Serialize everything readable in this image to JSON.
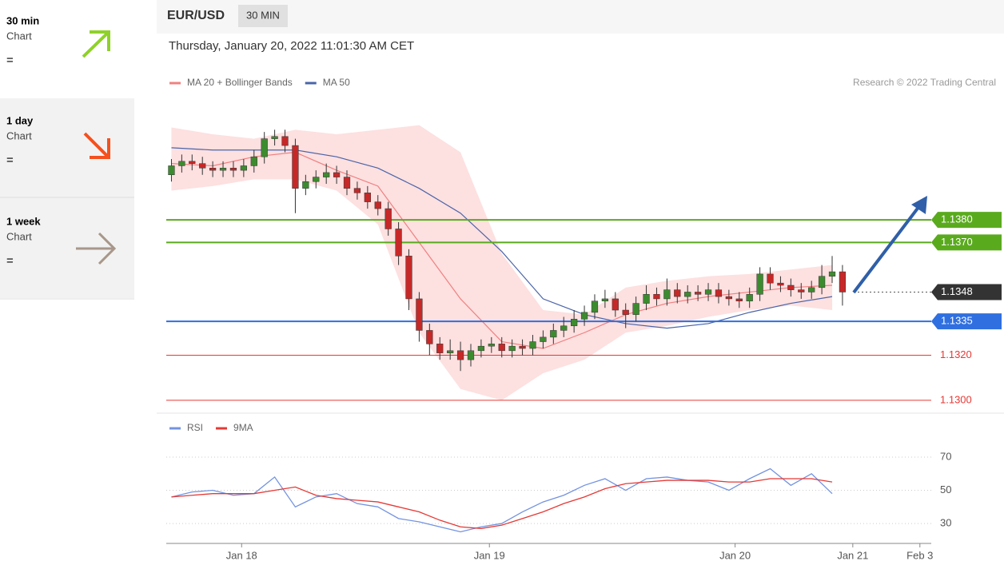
{
  "sidebar": [
    {
      "period": "30 min",
      "label": "Chart",
      "status": "="
    },
    {
      "period": "1 day",
      "label": "Chart",
      "status": "="
    },
    {
      "period": "1 week",
      "label": "Chart",
      "status": "="
    }
  ],
  "header": {
    "symbol": "EUR/USD",
    "interval": "30 MIN",
    "timestamp": "Thursday, January 20, 2022 11:01:30 AM CET"
  },
  "chart_data": [
    {
      "type": "candlestick",
      "annotation": "Research © 2022 Trading Central",
      "xlim": [
        0,
        74.1
      ],
      "ylim": [
        1.1295,
        1.1435
      ],
      "colors": {
        "up": "#3d8b2f",
        "down": "#c62828",
        "wick": "#333333"
      },
      "candles": {
        "x": [
          0.5,
          1.5,
          2.5,
          3.5,
          4.5,
          5.5,
          6.5,
          7.5,
          8.5,
          9.5,
          10.5,
          11.5,
          12.5,
          13.5,
          14.5,
          15.5,
          16.5,
          17.5,
          18.5,
          19.5,
          20.5,
          21.5,
          22.5,
          23.5,
          24.5,
          25.5,
          26.5,
          27.5,
          28.5,
          29.5,
          30.5,
          31.5,
          32.5,
          33.5,
          34.5,
          35.5,
          36.5,
          37.5,
          38.5,
          39.5,
          40.5,
          41.5,
          42.5,
          43.5,
          44.5,
          45.5,
          46.5,
          47.5,
          48.5,
          49.5,
          50.5,
          51.5,
          52.5,
          53.5,
          54.5,
          55.5,
          56.5,
          57.5,
          58.5,
          59.5,
          60.5,
          61.5,
          62.5,
          63.5,
          64.5,
          65.5
        ],
        "open": [
          1.14,
          1.1404,
          1.1406,
          1.1405,
          1.1403,
          1.1402,
          1.1403,
          1.1402,
          1.1404,
          1.1408,
          1.1416,
          1.1417,
          1.1413,
          1.1394,
          1.1397,
          1.1399,
          1.1401,
          1.1399,
          1.1394,
          1.1392,
          1.1388,
          1.1385,
          1.1376,
          1.1364,
          1.1345,
          1.1331,
          1.1325,
          1.1321,
          1.1322,
          1.1318,
          1.1322,
          1.1324,
          1.1325,
          1.1322,
          1.1324,
          1.1323,
          1.1326,
          1.1328,
          1.1331,
          1.1333,
          1.1336,
          1.1339,
          1.1344,
          1.1345,
          1.134,
          1.1338,
          1.1343,
          1.1347,
          1.1345,
          1.1349,
          1.1346,
          1.1348,
          1.1347,
          1.1349,
          1.1346,
          1.1345,
          1.1344,
          1.1347,
          1.1356,
          1.1352,
          1.1351,
          1.1349,
          1.1348,
          1.135,
          1.1355,
          1.1357
        ],
        "high": [
          1.1407,
          1.1409,
          1.1409,
          1.1408,
          1.1406,
          1.1406,
          1.1406,
          1.1407,
          1.1411,
          1.1419,
          1.142,
          1.142,
          1.1416,
          1.14,
          1.1402,
          1.1405,
          1.1404,
          1.1402,
          1.1397,
          1.1395,
          1.1391,
          1.1388,
          1.1379,
          1.1367,
          1.1348,
          1.1334,
          1.1328,
          1.1327,
          1.1326,
          1.1325,
          1.1327,
          1.1328,
          1.1328,
          1.1327,
          1.1327,
          1.1329,
          1.1331,
          1.1334,
          1.1337,
          1.134,
          1.1342,
          1.1347,
          1.1349,
          1.1348,
          1.1343,
          1.1346,
          1.1351,
          1.135,
          1.1354,
          1.1352,
          1.1351,
          1.1351,
          1.1352,
          1.1352,
          1.1349,
          1.1348,
          1.135,
          1.1359,
          1.1359,
          1.1355,
          1.1354,
          1.1352,
          1.1353,
          1.136,
          1.1364,
          1.136
        ],
        "low": [
          1.1397,
          1.1401,
          1.1402,
          1.14,
          1.1399,
          1.1399,
          1.1399,
          1.1399,
          1.1401,
          1.1405,
          1.1413,
          1.141,
          1.1383,
          1.1391,
          1.1394,
          1.1396,
          1.1396,
          1.1391,
          1.1389,
          1.1385,
          1.1382,
          1.1373,
          1.136,
          1.134,
          1.1326,
          1.132,
          1.1318,
          1.1318,
          1.1313,
          1.1315,
          1.1319,
          1.1321,
          1.1319,
          1.1319,
          1.132,
          1.132,
          1.1323,
          1.1325,
          1.1328,
          1.133,
          1.1333,
          1.1336,
          1.1341,
          1.1337,
          1.1332,
          1.1335,
          1.134,
          1.1342,
          1.1342,
          1.1343,
          1.1343,
          1.1344,
          1.1344,
          1.1343,
          1.1342,
          1.1341,
          1.1341,
          1.1344,
          1.1349,
          1.1348,
          1.1346,
          1.1345,
          1.1345,
          1.1347,
          1.1352,
          1.1342
        ],
        "close": [
          1.1404,
          1.1406,
          1.1405,
          1.1403,
          1.1402,
          1.1403,
          1.1402,
          1.1404,
          1.1408,
          1.1416,
          1.1417,
          1.1413,
          1.1394,
          1.1397,
          1.1399,
          1.1401,
          1.1399,
          1.1394,
          1.1392,
          1.1388,
          1.1385,
          1.1376,
          1.1364,
          1.1345,
          1.1331,
          1.1325,
          1.1321,
          1.1322,
          1.1318,
          1.1322,
          1.1324,
          1.1325,
          1.1322,
          1.1324,
          1.1323,
          1.1326,
          1.1328,
          1.1331,
          1.1333,
          1.1336,
          1.1339,
          1.1344,
          1.1345,
          1.134,
          1.1338,
          1.1343,
          1.1347,
          1.1345,
          1.1349,
          1.1346,
          1.1348,
          1.1347,
          1.1349,
          1.1346,
          1.1345,
          1.1344,
          1.1347,
          1.1356,
          1.1352,
          1.1351,
          1.1349,
          1.1348,
          1.135,
          1.1355,
          1.1357,
          1.1348
        ]
      },
      "series": [
        {
          "name": "MA 20 + Bollinger Bands",
          "color": "#f08080",
          "band_color": "#fde0e0",
          "x": [
            0.5,
            4.5,
            8.5,
            12.5,
            16.5,
            20.5,
            24.5,
            28.5,
            32.5,
            36.5,
            40.5,
            44.5,
            48.5,
            52.5,
            56.5,
            60.5,
            64.5
          ],
          "values": [
            1.1405,
            1.1404,
            1.1408,
            1.141,
            1.1402,
            1.1395,
            1.137,
            1.1345,
            1.1326,
            1.1323,
            1.133,
            1.1338,
            1.1343,
            1.1346,
            1.1348,
            1.135,
            1.1351
          ],
          "upper": [
            1.1421,
            1.1418,
            1.1416,
            1.142,
            1.1418,
            1.142,
            1.1422,
            1.141,
            1.1365,
            1.134,
            1.1338,
            1.135,
            1.1353,
            1.1355,
            1.1356,
            1.1358,
            1.136
          ],
          "lower": [
            1.1393,
            1.1395,
            1.1398,
            1.1398,
            1.1393,
            1.1378,
            1.133,
            1.1305,
            1.13,
            1.1312,
            1.1318,
            1.133,
            1.1333,
            1.1337,
            1.134,
            1.1342,
            1.134
          ]
        },
        {
          "name": "MA 50",
          "color": "#4a64a8",
          "x": [
            0.5,
            4.5,
            8.5,
            12.5,
            16.5,
            20.5,
            24.5,
            28.5,
            32.5,
            36.5,
            40.5,
            44.5,
            48.5,
            52.5,
            56.5,
            60.5,
            64.5
          ],
          "values": [
            1.1412,
            1.1411,
            1.1411,
            1.1411,
            1.1408,
            1.1403,
            1.1394,
            1.1383,
            1.1366,
            1.1345,
            1.1338,
            1.1334,
            1.1332,
            1.1334,
            1.1339,
            1.1343,
            1.1346
          ]
        }
      ],
      "levels": [
        {
          "value": 1.138,
          "label": "1.1380",
          "color": "#5aaa1e",
          "style": "box"
        },
        {
          "value": 1.137,
          "label": "1.1370",
          "color": "#5aaa1e",
          "style": "box"
        },
        {
          "value": 1.1348,
          "color": "#333333",
          "style": "current"
        },
        {
          "value": 1.1335,
          "color": "#2f6fe0",
          "style": "box"
        },
        {
          "value": 1.132,
          "label": "1.1320",
          "color": "#e53935",
          "style": "text"
        },
        {
          "value": 1.13,
          "label": "1.1300",
          "color": "#e53935",
          "style": "text"
        }
      ]
    },
    {
      "type": "line",
      "xlim": [
        0,
        74.1
      ],
      "ylim": [
        18,
        83
      ],
      "yticks": [
        30,
        50,
        70
      ],
      "grid": true,
      "xticks": [
        {
          "value": 7.3,
          "label": "Jan 18"
        },
        {
          "value": 31.3,
          "label": "Jan 19"
        },
        {
          "value": 55.1,
          "label": "Jan 20"
        },
        {
          "value": 66.5,
          "label": "Jan 21"
        },
        {
          "value": 73,
          "label": "Feb 3"
        }
      ],
      "x": [
        0.5,
        2.5,
        4.5,
        6.5,
        8.5,
        10.5,
        12.5,
        14.5,
        16.5,
        18.5,
        20.5,
        22.5,
        24.5,
        26.5,
        28.5,
        30.5,
        32.5,
        34.5,
        36.5,
        38.5,
        40.5,
        42.5,
        44.5,
        46.5,
        48.5,
        50.5,
        52.5,
        54.5,
        56.5,
        58.5,
        60.5,
        62.5,
        64.5
      ],
      "series": [
        {
          "name": "RSI",
          "color": "#7393e0",
          "values": [
            46,
            49,
            50,
            47,
            48,
            58,
            40,
            46,
            48,
            42,
            40,
            33,
            31,
            28,
            25,
            28,
            30,
            37,
            43,
            47,
            53,
            57,
            50,
            57,
            58,
            56,
            55,
            50,
            57,
            63,
            53,
            60,
            48
          ]
        },
        {
          "name": "9MA",
          "color": "#e53935",
          "values": [
            46,
            47,
            48,
            48,
            48,
            50,
            52,
            47,
            45,
            44,
            43,
            40,
            37,
            32,
            28,
            27,
            29,
            33,
            37,
            42,
            46,
            51,
            54,
            55,
            56,
            56,
            56,
            55,
            55,
            57,
            57,
            57,
            55
          ]
        }
      ]
    }
  ]
}
